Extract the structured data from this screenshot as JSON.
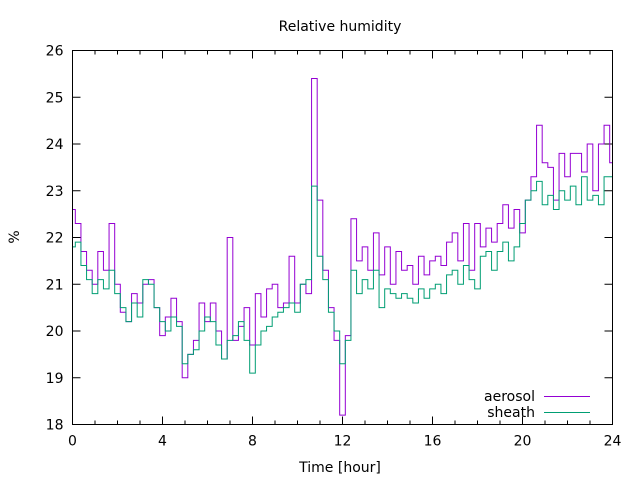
{
  "chart_data": {
    "type": "line",
    "title": "Relative humidity",
    "xlabel": "Time [hour]",
    "ylabel": "%",
    "xlim": [
      0,
      24
    ],
    "ylim": [
      18,
      26
    ],
    "xticks": [
      "0",
      "4",
      "8",
      "12",
      "16",
      "20",
      "24"
    ],
    "xtick_values": [
      0,
      4,
      8,
      12,
      16,
      20,
      24
    ],
    "yticks": [
      "18",
      "19",
      "20",
      "21",
      "22",
      "23",
      "24",
      "25",
      "26"
    ],
    "ytick_values": [
      18,
      19,
      20,
      21,
      22,
      23,
      24,
      25,
      26
    ],
    "x_step": 0.25,
    "legend_position": "bottom-right",
    "grid": false,
    "series": [
      {
        "name": "aerosol",
        "color": "#9400d3",
        "values": [
          22.6,
          22.3,
          21.7,
          21.3,
          21.0,
          21.7,
          21.3,
          22.3,
          21.0,
          20.4,
          20.2,
          20.8,
          20.6,
          21.0,
          21.1,
          20.5,
          19.9,
          20.3,
          20.7,
          20.2,
          19.0,
          19.5,
          19.8,
          20.6,
          20.2,
          20.6,
          20.0,
          19.4,
          22.0,
          19.8,
          20.1,
          20.5,
          19.7,
          20.8,
          20.3,
          20.9,
          21.0,
          20.5,
          20.6,
          21.6,
          20.6,
          21.0,
          20.8,
          25.4,
          22.8,
          21.3,
          20.5,
          19.8,
          18.2,
          19.9,
          22.4,
          21.5,
          21.8,
          21.3,
          22.1,
          21.2,
          21.8,
          21.0,
          21.7,
          21.3,
          21.4,
          21.0,
          21.6,
          21.2,
          21.5,
          21.6,
          21.4,
          21.9,
          22.1,
          21.5,
          22.3,
          21.3,
          22.3,
          21.8,
          22.2,
          21.9,
          22.3,
          22.7,
          22.2,
          22.6,
          22.1,
          22.8,
          23.3,
          24.4,
          23.6,
          23.5,
          22.8,
          23.8,
          23.3,
          23.8,
          23.8,
          23.4,
          24.0,
          23.0,
          24.0,
          24.4,
          23.6
        ]
      },
      {
        "name": "sheath",
        "color": "#009e73",
        "values": [
          21.8,
          21.9,
          21.4,
          21.1,
          20.8,
          21.1,
          20.9,
          21.3,
          20.8,
          20.5,
          20.2,
          20.6,
          20.3,
          21.1,
          21.0,
          20.5,
          20.2,
          20.0,
          20.3,
          20.1,
          19.3,
          19.5,
          19.6,
          20.0,
          20.3,
          20.2,
          19.7,
          19.4,
          19.8,
          19.9,
          20.2,
          19.8,
          19.1,
          19.7,
          20.0,
          20.1,
          20.3,
          20.4,
          20.5,
          20.6,
          20.4,
          21.0,
          21.1,
          23.1,
          21.6,
          21.1,
          20.4,
          20.0,
          19.3,
          19.8,
          21.3,
          20.8,
          21.1,
          20.9,
          21.3,
          20.5,
          20.9,
          20.8,
          20.7,
          20.8,
          20.7,
          20.6,
          20.9,
          20.7,
          20.9,
          21.0,
          20.8,
          21.2,
          21.3,
          21.0,
          21.4,
          21.1,
          20.9,
          21.6,
          21.7,
          21.3,
          21.7,
          21.9,
          21.5,
          21.8,
          22.3,
          22.8,
          23.0,
          23.2,
          22.7,
          22.9,
          22.6,
          23.0,
          22.8,
          23.1,
          22.7,
          23.3,
          22.8,
          22.9,
          22.7,
          23.3,
          23.3
        ]
      }
    ]
  }
}
